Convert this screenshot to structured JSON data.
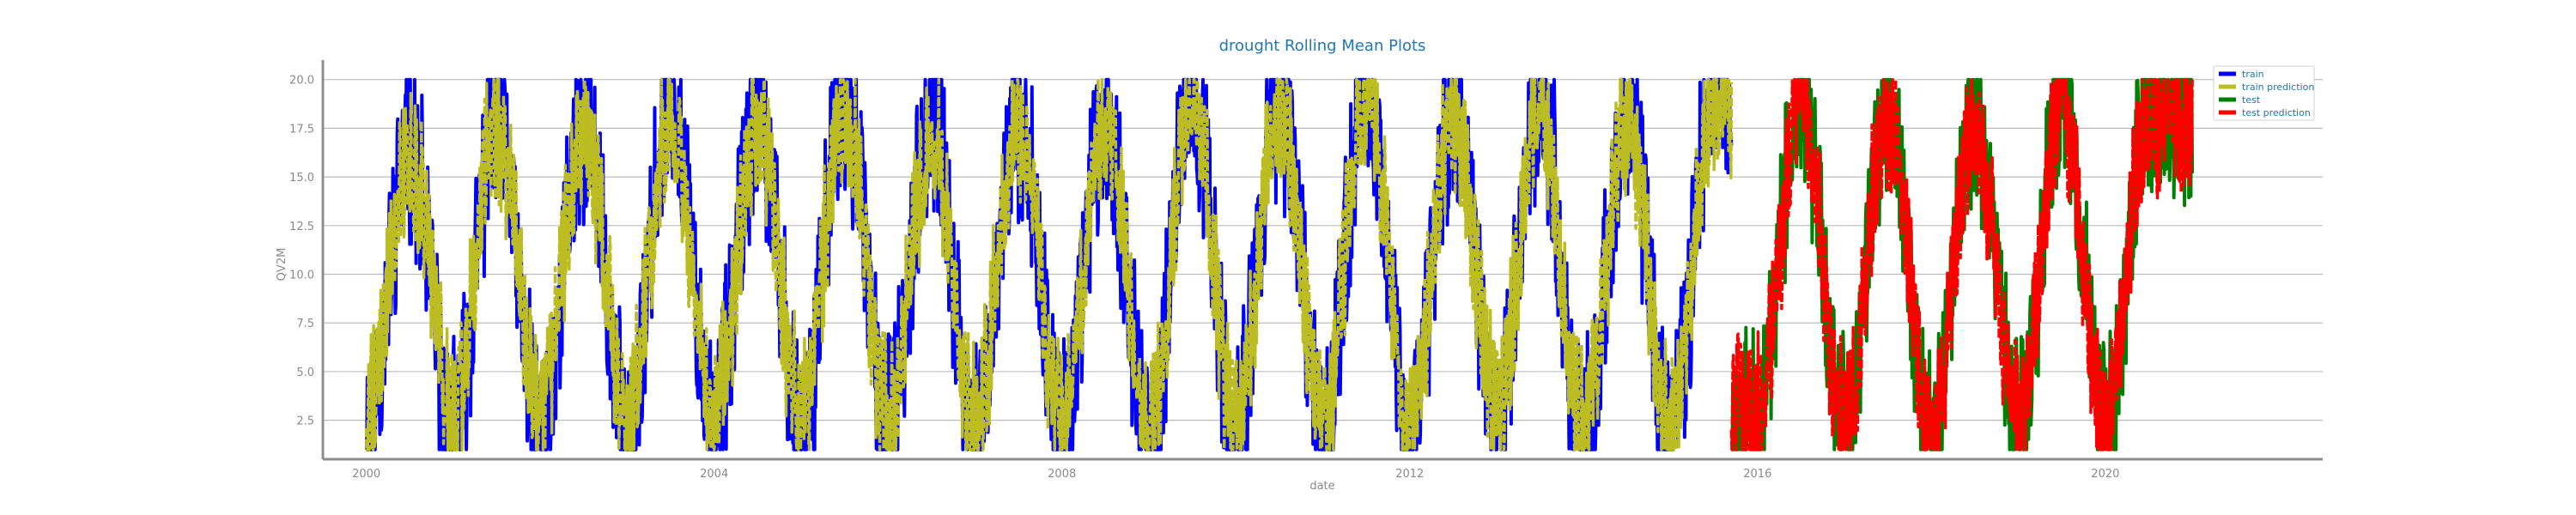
{
  "chart_data": {
    "type": "line",
    "title": "drought Rolling Mean Plots",
    "xlabel": "date",
    "ylabel": "QV2M",
    "xlim": [
      1999.5,
      2022.5
    ],
    "ylim": [
      0.5,
      21.0
    ],
    "x_ticks": [
      "2000",
      "2004",
      "2008",
      "2012",
      "2016",
      "2020"
    ],
    "y_ticks": [
      "2.5",
      "5.0",
      "7.5",
      "10.0",
      "12.5",
      "15.0",
      "17.5",
      "20.0"
    ],
    "grid": "horizontal",
    "legend_position": "top-right",
    "seasonal_x": [
      2000.0,
      2000.5,
      2001.0,
      2001.5,
      2002.0,
      2002.5,
      2003.0,
      2003.5,
      2004.0,
      2004.5,
      2005.0,
      2005.5,
      2006.0,
      2006.5,
      2007.0,
      2007.5,
      2008.0,
      2008.5,
      2009.0,
      2009.5,
      2010.0,
      2010.5,
      2011.0,
      2011.5,
      2012.0,
      2012.5,
      2013.0,
      2013.5,
      2014.0,
      2014.5,
      2015.0,
      2015.5,
      2016.0,
      2016.5,
      2017.0,
      2017.5,
      2018.0,
      2018.5,
      2019.0,
      2019.5,
      2020.0,
      2020.5,
      2021.0
    ],
    "series": [
      {
        "name": "train",
        "color": "#0000ff",
        "x_range": [
          "2000",
          "2015.7"
        ],
        "seasonal_y": [
          2.0,
          16.5,
          2.0,
          18.0,
          2.0,
          17.5,
          2.0,
          18.5,
          2.5,
          18.0,
          2.5,
          19.0,
          2.5,
          17.5,
          2.0,
          18.0,
          2.0,
          18.0,
          1.5,
          19.0,
          2.0,
          19.0,
          2.0,
          19.5,
          2.0,
          18.5,
          2.5,
          19.0,
          1.5,
          18.0,
          1.5,
          19.5
        ]
      },
      {
        "name": "train prediction",
        "color": "#bcbd22",
        "x_range": [
          "2000",
          "2015.7"
        ],
        "seasonal_y": [
          3.0,
          16.0,
          3.0,
          17.5,
          3.0,
          17.0,
          3.0,
          18.0,
          3.0,
          17.5,
          3.0,
          18.5,
          3.0,
          17.0,
          2.5,
          17.5,
          2.5,
          17.5,
          2.0,
          18.5,
          2.5,
          18.5,
          2.5,
          19.0,
          2.5,
          18.0,
          3.0,
          18.5,
          2.0,
          17.5,
          2.0,
          19.0
        ]
      },
      {
        "name": "test",
        "color": "#008000",
        "x_range": [
          "2015.7",
          "2021"
        ],
        "seasonal_y": [
          2.5,
          19.0,
          2.0,
          18.5,
          1.5,
          18.0,
          2.5,
          19.0,
          2.0,
          18.5
        ]
      },
      {
        "name": "test prediction",
        "color": "#ff0000",
        "x_range": [
          "2015.7",
          "2021"
        ],
        "seasonal_y": [
          3.0,
          18.5,
          2.5,
          18.0,
          2.0,
          17.5,
          3.0,
          18.5,
          2.5,
          18.0
        ]
      }
    ]
  }
}
